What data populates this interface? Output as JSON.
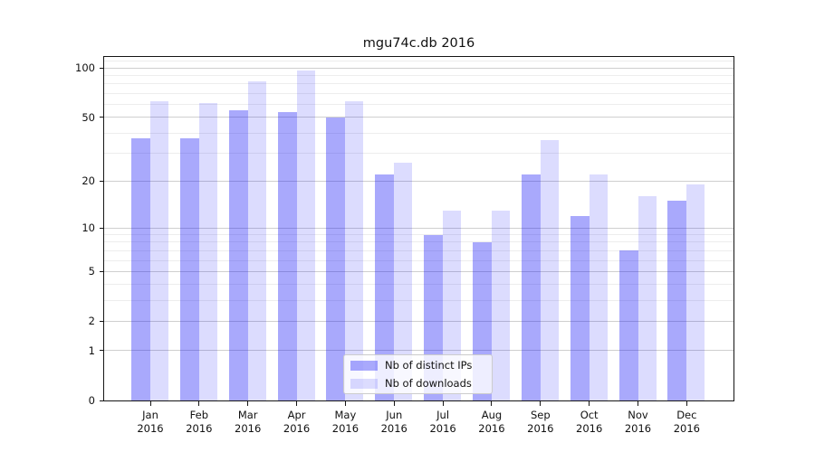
{
  "chart_data": {
    "type": "bar",
    "title": "mgu74c.db 2016",
    "categories": [
      "Jan",
      "Feb",
      "Mar",
      "Apr",
      "May",
      "Jun",
      "Jul",
      "Aug",
      "Sep",
      "Oct",
      "Nov",
      "Dec"
    ],
    "x_year": "2016",
    "series": [
      {
        "name": "Nb of distinct IPs",
        "color": "rgba(10,10,245,0.35)",
        "values": [
          37,
          37,
          55,
          54,
          50,
          22,
          9,
          8,
          22,
          12,
          7,
          15
        ]
      },
      {
        "name": "Nb of downloads",
        "color": "rgba(10,10,245,0.14)",
        "values": [
          63,
          61,
          83,
          97,
          63,
          26,
          13,
          13,
          36,
          22,
          16,
          19
        ]
      }
    ],
    "yscale": "log1p",
    "y_ticks": [
      0,
      1,
      2,
      5,
      10,
      20,
      50,
      100
    ],
    "y_minor_ticks": [
      3,
      4,
      6,
      7,
      8,
      9,
      30,
      40,
      60,
      70,
      80,
      90,
      110
    ],
    "ylim": [
      0,
      117
    ],
    "grid": true,
    "legend_position": "lower center",
    "colors": {
      "axis": "#151515",
      "grid_major": "#cfcfcf",
      "grid_minor": "#ededed"
    }
  }
}
